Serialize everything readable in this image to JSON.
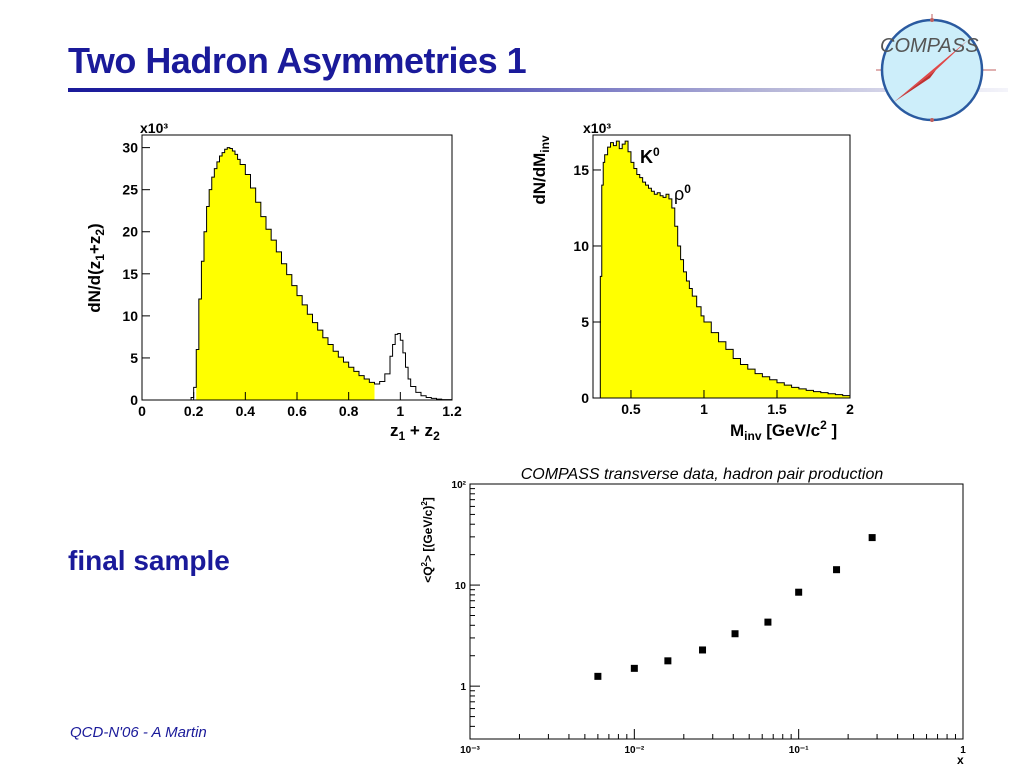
{
  "slide": {
    "title": "Two Hadron Asymmetries  1",
    "label": "final sample",
    "footer": "QCD-N'06  -  A Martin",
    "logo_text": "COMPASS",
    "colors": {
      "title": "#1a1a9a",
      "fill": "#ffff00"
    }
  },
  "chart_data": [
    {
      "type": "histogram",
      "ylabel": "dN/d(z1+z2)",
      "xlabel": "z1 + z2",
      "y_multiplier": "x10³",
      "xlim": [
        0,
        1.2
      ],
      "ylim": [
        0,
        31.5
      ],
      "xticks": [
        0,
        0.2,
        0.4,
        0.6,
        0.8,
        1,
        1.2
      ],
      "yticks": [
        0,
        5,
        10,
        15,
        20,
        25,
        30
      ],
      "fill_range": [
        0.21,
        0.9
      ],
      "x": [
        0.0,
        0.15,
        0.19,
        0.2,
        0.21,
        0.22,
        0.23,
        0.24,
        0.25,
        0.26,
        0.27,
        0.28,
        0.29,
        0.3,
        0.31,
        0.32,
        0.33,
        0.34,
        0.35,
        0.36,
        0.37,
        0.38,
        0.4,
        0.42,
        0.44,
        0.46,
        0.48,
        0.5,
        0.52,
        0.54,
        0.56,
        0.58,
        0.6,
        0.62,
        0.64,
        0.66,
        0.68,
        0.7,
        0.72,
        0.74,
        0.76,
        0.78,
        0.8,
        0.82,
        0.84,
        0.86,
        0.88,
        0.9,
        0.92,
        0.94,
        0.96,
        0.97,
        0.98,
        0.99,
        1.0,
        1.01,
        1.02,
        1.03,
        1.04,
        1.06,
        1.08,
        1.1,
        1.12,
        1.14,
        1.16,
        1.2
      ],
      "y": [
        0,
        0,
        0.3,
        1.5,
        6,
        12,
        16.5,
        20,
        23,
        25,
        26.5,
        27.5,
        28.3,
        29,
        29.4,
        29.8,
        30,
        29.9,
        29.6,
        29.2,
        28.6,
        28,
        26.8,
        25.2,
        23.5,
        21.8,
        20.3,
        19,
        17.6,
        16.2,
        14.9,
        13.6,
        12.4,
        11.3,
        10.2,
        9.2,
        8.3,
        7.4,
        6.6,
        5.8,
        5.1,
        4.5,
        3.9,
        3.4,
        2.9,
        2.5,
        2.1,
        1.9,
        2.2,
        3.1,
        5.2,
        6.6,
        7.8,
        7.9,
        7.1,
        5.6,
        3.9,
        2.5,
        1.6,
        0.9,
        0.5,
        0.3,
        0.2,
        0.1,
        0.05,
        0
      ]
    },
    {
      "type": "histogram",
      "ylabel": "dN/dMinv",
      "xlabel": "Minv [GeV/c² ]",
      "y_multiplier": "x10³",
      "xlim": [
        0.24,
        2
      ],
      "ylim": [
        0,
        17.3
      ],
      "xticks": [
        0.5,
        1,
        1.5,
        2
      ],
      "yticks": [
        0,
        5,
        10,
        15
      ],
      "annotations": [
        {
          "label": "K",
          "sup": "0",
          "x": 0.5
        },
        {
          "label": "ρ",
          "sup": "0",
          "x": 0.77
        }
      ],
      "x": [
        0.24,
        0.26,
        0.28,
        0.29,
        0.3,
        0.31,
        0.32,
        0.34,
        0.36,
        0.38,
        0.4,
        0.42,
        0.44,
        0.46,
        0.48,
        0.5,
        0.52,
        0.54,
        0.56,
        0.58,
        0.6,
        0.62,
        0.64,
        0.66,
        0.68,
        0.7,
        0.72,
        0.74,
        0.76,
        0.78,
        0.8,
        0.82,
        0.84,
        0.86,
        0.88,
        0.9,
        0.92,
        0.95,
        0.98,
        1.0,
        1.05,
        1.1,
        1.15,
        1.2,
        1.25,
        1.3,
        1.35,
        1.4,
        1.45,
        1.5,
        1.55,
        1.6,
        1.65,
        1.7,
        1.75,
        1.8,
        1.85,
        1.9,
        1.95,
        2.0
      ],
      "y": [
        0,
        0,
        0,
        8,
        14,
        15.5,
        16,
        16.5,
        16.8,
        16.6,
        16.9,
        16.4,
        16.7,
        16.9,
        16.2,
        15.5,
        15.1,
        14.7,
        14.5,
        14.2,
        14,
        13.8,
        13.6,
        13.4,
        13.5,
        13.3,
        13.2,
        13.4,
        13.1,
        12.5,
        11.3,
        10,
        9.1,
        8.3,
        7.7,
        7.2,
        6.7,
        6,
        5.4,
        5,
        4.3,
        3.7,
        3.2,
        2.6,
        2.2,
        1.9,
        1.6,
        1.4,
        1.2,
        1,
        0.85,
        0.7,
        0.6,
        0.5,
        0.42,
        0.35,
        0.28,
        0.22,
        0.16,
        0.1
      ]
    },
    {
      "type": "scatter",
      "title": "COMPASS transverse data, hadron pair production",
      "xlabel": "x",
      "ylabel": "<Q2> [(GeV/c)2]",
      "xscale": "log",
      "yscale": "log",
      "xlim": [
        0.001,
        1
      ],
      "ylim": [
        0.3,
        100
      ],
      "xticks": [
        "10⁻³",
        "10⁻²",
        "10⁻¹",
        "1"
      ],
      "yticks": [
        "1",
        "10",
        "10²"
      ],
      "x": [
        0.006,
        0.01,
        0.016,
        0.026,
        0.041,
        0.065,
        0.1,
        0.17,
        0.28
      ],
      "y": [
        1.25,
        1.5,
        1.78,
        2.28,
        3.3,
        4.3,
        8.5,
        14.2,
        29.5
      ]
    }
  ]
}
